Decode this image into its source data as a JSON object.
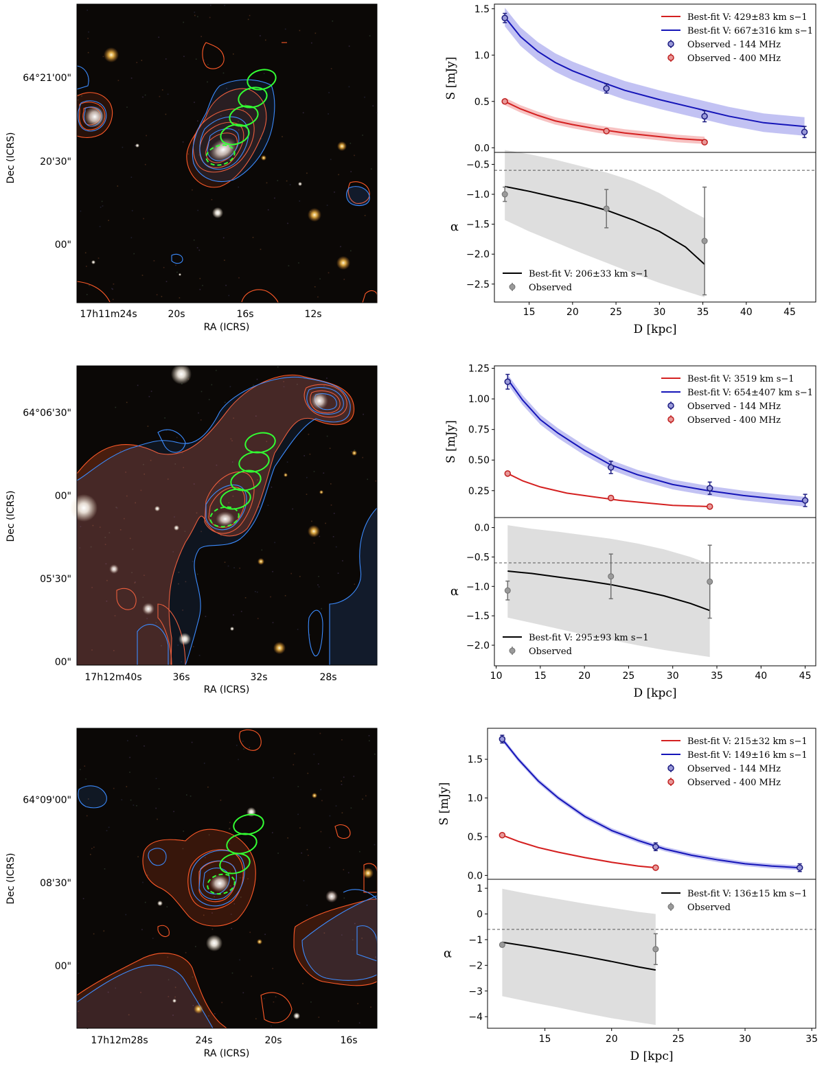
{
  "colors": {
    "red": "#d42020",
    "blue": "#1414b8",
    "black": "#000000",
    "gray_band": "#d3d3d3",
    "red_band": "#f4a8a8",
    "blue_band": "#a8a8ee",
    "green_ellipse": "#33ff33",
    "contour_red": "#ff5a28",
    "contour_blue": "#3c8cff",
    "sky": "#0b0806"
  },
  "chart_data": [
    {
      "type": "image",
      "name": "sky-panel-1",
      "xlabel": "RA (ICRS)",
      "ylabel": "Dec (ICRS)",
      "ra_ticks": [
        {
          "label": "17h11m24s",
          "ra_sec": 24
        },
        {
          "label": "20s",
          "ra_sec": 20
        },
        {
          "label": "16s",
          "ra_sec": 16
        },
        {
          "label": "12s",
          "ra_sec": 12
        }
      ],
      "dec_ticks": [
        {
          "label": "64°21'00\"",
          "dec_arcsec": 60
        },
        {
          "label": "20'30\"",
          "dec_arcsec": 30
        },
        {
          "label": "00\"",
          "dec_arcsec": 0
        }
      ]
    },
    {
      "type": "line",
      "name": "flux-panel-1",
      "ylabel": "S [mJy]",
      "xlim": [
        11,
        48
      ],
      "ylim": [
        -0.05,
        1.55
      ],
      "yticks": [
        0.0,
        0.5,
        1.0,
        1.5
      ],
      "series": [
        {
          "name": "Best-fit V: 429±83 km s−1",
          "kind": "fit",
          "color": "red",
          "x": [
            12.2,
            14,
            16,
            18,
            20,
            23,
            26,
            29,
            32,
            35.2
          ],
          "y": [
            0.5,
            0.42,
            0.35,
            0.29,
            0.25,
            0.2,
            0.16,
            0.13,
            0.1,
            0.08
          ],
          "band": 0.04
        },
        {
          "name": "Best-fit V: 667±316 km s−1",
          "kind": "fit",
          "color": "blue",
          "x": [
            12.2,
            14,
            16,
            18,
            20,
            23,
            26,
            30,
            34,
            38,
            42,
            46.7
          ],
          "y": [
            1.41,
            1.2,
            1.04,
            0.92,
            0.83,
            0.72,
            0.62,
            0.52,
            0.43,
            0.34,
            0.27,
            0.23
          ],
          "band": 0.1
        },
        {
          "name": "Observed - 144 MHz",
          "kind": "points",
          "color": "blue",
          "x": [
            12.2,
            23.9,
            35.2,
            46.7
          ],
          "y": [
            1.4,
            0.64,
            0.34,
            0.17
          ],
          "err": [
            0.05,
            0.05,
            0.06,
            0.06
          ]
        },
        {
          "name": "Observed - 400 MHz",
          "kind": "points",
          "color": "red",
          "x": [
            12.2,
            23.9,
            35.2
          ],
          "y": [
            0.5,
            0.18,
            0.06
          ],
          "err": [
            0.02,
            0.01,
            0.01
          ]
        }
      ]
    },
    {
      "type": "line",
      "name": "alpha-panel-1",
      "ylabel": "α",
      "xlabel": "D [kpc]",
      "xlim": [
        11,
        48
      ],
      "xticks": [
        15,
        20,
        25,
        30,
        35,
        40,
        45
      ],
      "ylim": [
        -2.8,
        -0.3
      ],
      "yticks": [
        -0.5,
        -1.0,
        -1.5,
        -2.0,
        -2.5
      ],
      "dashed_line_y": -0.6,
      "series": [
        {
          "name": "Best-fit V: 206±33 km s−1",
          "kind": "fit",
          "color": "black",
          "x": [
            12.2,
            15,
            18,
            21,
            24,
            27,
            30,
            33,
            35.2
          ],
          "y": [
            -0.87,
            -0.95,
            -1.05,
            -1.15,
            -1.27,
            -1.43,
            -1.62,
            -1.88,
            -2.17
          ],
          "band_low": [
            -1.43,
            -1.62,
            -1.8,
            -1.98,
            -2.15,
            -2.32,
            -2.48,
            -2.62,
            -2.72
          ],
          "band_high": [
            -0.26,
            -0.33,
            -0.42,
            -0.53,
            -0.64,
            -0.78,
            -0.98,
            -1.23,
            -1.4
          ]
        },
        {
          "name": "Observed",
          "kind": "points",
          "color": "gray",
          "x": [
            12.2,
            23.9,
            35.2
          ],
          "y": [
            -1.0,
            -1.24,
            -1.78
          ],
          "err": [
            0.12,
            0.32,
            0.9
          ]
        }
      ]
    },
    {
      "type": "image",
      "name": "sky-panel-2",
      "xlabel": "RA (ICRS)",
      "ylabel": "Dec (ICRS)",
      "ra_ticks": [
        {
          "label": "17h12m40s",
          "ra_sec": 40
        },
        {
          "label": "36s",
          "ra_sec": 36
        },
        {
          "label": "32s",
          "ra_sec": 32
        },
        {
          "label": "28s",
          "ra_sec": 28
        }
      ],
      "dec_ticks": [
        {
          "label": "64°06'30\"",
          "dec_arcsec": 90
        },
        {
          "label": "00\"",
          "dec_arcsec": 60
        },
        {
          "label": "05'30\"",
          "dec_arcsec": 30
        },
        {
          "label": "00\"",
          "dec_arcsec": 0
        }
      ]
    },
    {
      "type": "line",
      "name": "flux-panel-2",
      "ylabel": "S [mJy]",
      "xlim": [
        9.8,
        46.2
      ],
      "ylim": [
        0.03,
        1.27
      ],
      "yticks": [
        0.25,
        0.5,
        0.75,
        1.0,
        1.25
      ],
      "series": [
        {
          "name": "Best-fit V: 3519 km s−1",
          "kind": "fit",
          "color": "red",
          "x": [
            11.3,
            13,
            15,
            18,
            21,
            24,
            27,
            30,
            34.2
          ],
          "y": [
            0.39,
            0.33,
            0.28,
            0.23,
            0.2,
            0.17,
            0.15,
            0.13,
            0.12
          ],
          "band": 0
        },
        {
          "name": "Best-fit V: 654±407 km s−1",
          "kind": "fit",
          "color": "blue",
          "x": [
            11.3,
            13,
            15,
            17,
            20,
            23,
            26,
            30,
            34,
            38,
            42,
            45
          ],
          "y": [
            1.16,
            0.99,
            0.83,
            0.72,
            0.58,
            0.46,
            0.38,
            0.3,
            0.25,
            0.21,
            0.18,
            0.16
          ],
          "band": 0.04
        },
        {
          "name": "Observed - 144 MHz",
          "kind": "points",
          "color": "blue",
          "x": [
            11.3,
            23.0,
            34.2,
            45.0
          ],
          "y": [
            1.14,
            0.44,
            0.27,
            0.17
          ],
          "err": [
            0.06,
            0.05,
            0.05,
            0.05
          ]
        },
        {
          "name": "Observed - 400 MHz",
          "kind": "points",
          "color": "red",
          "x": [
            11.3,
            23.0,
            34.2
          ],
          "y": [
            0.39,
            0.19,
            0.12
          ],
          "err": [
            0.01,
            0.01,
            0.01
          ]
        }
      ]
    },
    {
      "type": "line",
      "name": "alpha-panel-2",
      "ylabel": "α",
      "xlabel": "D [kpc]",
      "xlim": [
        9.8,
        46.2
      ],
      "xticks": [
        10,
        15,
        20,
        25,
        30,
        35,
        40,
        45
      ],
      "ylim": [
        -2.35,
        0.17
      ],
      "yticks": [
        0.0,
        -0.5,
        -1.0,
        -1.5,
        -2.0
      ],
      "dashed_line_y": -0.6,
      "series": [
        {
          "name": "Best-fit V: 295±93 km s−1",
          "kind": "fit",
          "color": "black",
          "x": [
            11.3,
            14,
            17,
            20,
            23,
            26,
            29,
            32,
            34.2
          ],
          "y": [
            -0.74,
            -0.78,
            -0.84,
            -0.9,
            -0.97,
            -1.06,
            -1.16,
            -1.29,
            -1.41
          ],
          "band_low": [
            -1.53,
            -1.62,
            -1.72,
            -1.82,
            -1.91,
            -2.0,
            -2.08,
            -2.15,
            -2.2
          ],
          "band_high": [
            0.04,
            -0.02,
            -0.07,
            -0.13,
            -0.19,
            -0.27,
            -0.37,
            -0.5,
            -0.62
          ]
        },
        {
          "name": "Observed",
          "kind": "points",
          "color": "gray",
          "x": [
            11.3,
            23.0,
            34.2
          ],
          "y": [
            -1.07,
            -0.83,
            -0.92
          ],
          "err": [
            0.16,
            0.38,
            0.62
          ]
        }
      ]
    },
    {
      "type": "image",
      "name": "sky-panel-3",
      "xlabel": "RA (ICRS)",
      "ylabel": "Dec (ICRS)",
      "ra_ticks": [
        {
          "label": "17h12m28s",
          "ra_sec": 28
        },
        {
          "label": "24s",
          "ra_sec": 24
        },
        {
          "label": "20s",
          "ra_sec": 20
        },
        {
          "label": "16s",
          "ra_sec": 16
        }
      ],
      "dec_ticks": [
        {
          "label": "64°09'00\"",
          "dec_arcsec": 60
        },
        {
          "label": "08'30\"",
          "dec_arcsec": 30
        },
        {
          "label": "00\"",
          "dec_arcsec": 0
        }
      ]
    },
    {
      "type": "line",
      "name": "flux-panel-3",
      "ylabel": "S [mJy]",
      "xlim": [
        10.7,
        35.3
      ],
      "ylim": [
        -0.05,
        1.9
      ],
      "yticks": [
        0.0,
        0.5,
        1.0,
        1.5
      ],
      "series": [
        {
          "name": "Best-fit V: 215±32 km s−1",
          "kind": "fit",
          "color": "red",
          "x": [
            11.8,
            13,
            14.5,
            16,
            18,
            20,
            22,
            23.3
          ],
          "y": [
            0.52,
            0.44,
            0.36,
            0.3,
            0.23,
            0.17,
            0.12,
            0.1
          ],
          "band": 0.01
        },
        {
          "name": "Best-fit V: 149±16 km s−1",
          "kind": "fit",
          "color": "blue",
          "x": [
            11.8,
            13,
            14.5,
            16,
            18,
            20,
            22,
            24,
            26,
            28,
            30,
            32,
            34.1
          ],
          "y": [
            1.76,
            1.5,
            1.22,
            1.0,
            0.76,
            0.58,
            0.45,
            0.34,
            0.26,
            0.2,
            0.15,
            0.12,
            0.1
          ],
          "band": 0.03
        },
        {
          "name": "Observed - 144 MHz",
          "kind": "points",
          "color": "blue",
          "x": [
            11.8,
            23.3,
            34.1
          ],
          "y": [
            1.76,
            0.37,
            0.1
          ],
          "err": [
            0.05,
            0.05,
            0.05
          ]
        },
        {
          "name": "Observed - 400 MHz",
          "kind": "points",
          "color": "red",
          "x": [
            11.8,
            23.3
          ],
          "y": [
            0.52,
            0.1
          ],
          "err": [
            0.01,
            0.01
          ]
        }
      ]
    },
    {
      "type": "line",
      "name": "alpha-panel-3",
      "ylabel": "α",
      "xlabel": "D [kpc]",
      "xlim": [
        10.7,
        35.3
      ],
      "xticks": [
        15,
        20,
        25,
        30,
        35
      ],
      "ylim": [
        -4.45,
        1.35
      ],
      "yticks": [
        1,
        0,
        -1,
        -2,
        -3,
        -4
      ],
      "dashed_line_y": -0.6,
      "series": [
        {
          "name": "Best-fit V: 136±15 km s−1",
          "kind": "fit",
          "color": "black",
          "x": [
            11.8,
            14,
            16,
            18,
            20,
            22,
            23.3
          ],
          "y": [
            -1.1,
            -1.28,
            -1.46,
            -1.65,
            -1.85,
            -2.06,
            -2.18
          ],
          "band_low": [
            -3.2,
            -3.44,
            -3.64,
            -3.86,
            -4.06,
            -4.22,
            -4.32
          ],
          "band_high": [
            0.98,
            0.76,
            0.58,
            0.4,
            0.24,
            0.08,
            0.0
          ]
        },
        {
          "name": "Observed",
          "kind": "points",
          "color": "gray",
          "x": [
            11.8,
            23.3
          ],
          "y": [
            -1.2,
            -1.37
          ],
          "err": [
            0.06,
            0.6
          ]
        }
      ]
    }
  ]
}
